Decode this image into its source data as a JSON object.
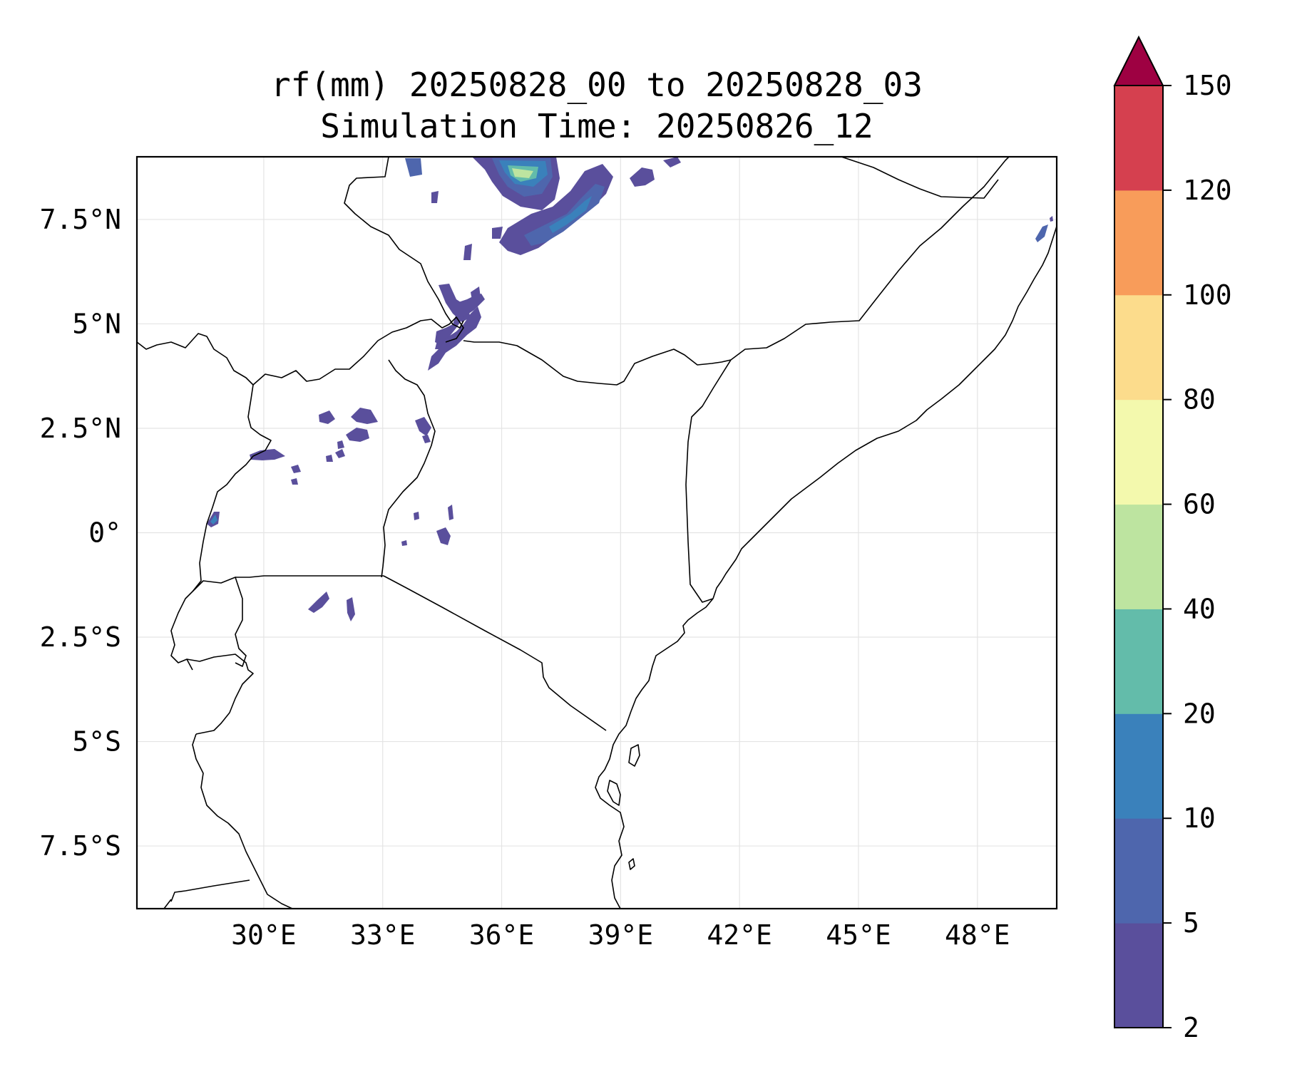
{
  "title_line1": "rf(mm) 20250828_00 to 20250828_03",
  "title_line2": "Simulation Time: 20250826_12",
  "map": {
    "lon_range": [
      26.8,
      50.0
    ],
    "lat_range": [
      -9.0,
      9.0
    ],
    "x_ticks": [
      {
        "value": 30,
        "label": "30°E"
      },
      {
        "value": 33,
        "label": "33°E"
      },
      {
        "value": 36,
        "label": "36°E"
      },
      {
        "value": 39,
        "label": "39°E"
      },
      {
        "value": 42,
        "label": "42°E"
      },
      {
        "value": 45,
        "label": "45°E"
      },
      {
        "value": 48,
        "label": "48°E"
      }
    ],
    "y_ticks": [
      {
        "value": 7.5,
        "label": "7.5°N"
      },
      {
        "value": 5,
        "label": "5°N"
      },
      {
        "value": 2.5,
        "label": "2.5°N"
      },
      {
        "value": 0,
        "label": "0°"
      },
      {
        "value": -2.5,
        "label": "2.5°S"
      },
      {
        "value": -5,
        "label": "5°S"
      },
      {
        "value": -7.5,
        "label": "7.5°S"
      }
    ],
    "grid": true
  },
  "colorbar": {
    "levels": [
      2,
      5,
      10,
      20,
      40,
      60,
      80,
      100,
      120,
      150
    ],
    "labels": [
      "2",
      "5",
      "10",
      "20",
      "40",
      "60",
      "80",
      "100",
      "120",
      "150"
    ],
    "colors": [
      "#5a4f9c",
      "#4e66ad",
      "#3a81bb",
      "#63bcaa",
      "#bde4a0",
      "#f3f9ad",
      "#fcdc8c",
      "#f89c5a",
      "#d5404f"
    ],
    "extend_color": "#9e0142",
    "extend": "max",
    "label_positions": [
      {
        "value": 2,
        "label": "2"
      },
      {
        "value": 5,
        "label": "5"
      },
      {
        "value": 10,
        "label": "10"
      },
      {
        "value": 20,
        "label": "20"
      },
      {
        "value": 40,
        "label": "40"
      },
      {
        "value": 60,
        "label": "60"
      },
      {
        "value": 80,
        "label": "80"
      },
      {
        "value": 100,
        "label": "100"
      },
      {
        "value": 120,
        "label": "120"
      },
      {
        "value": 150,
        "label": "150"
      }
    ]
  }
}
